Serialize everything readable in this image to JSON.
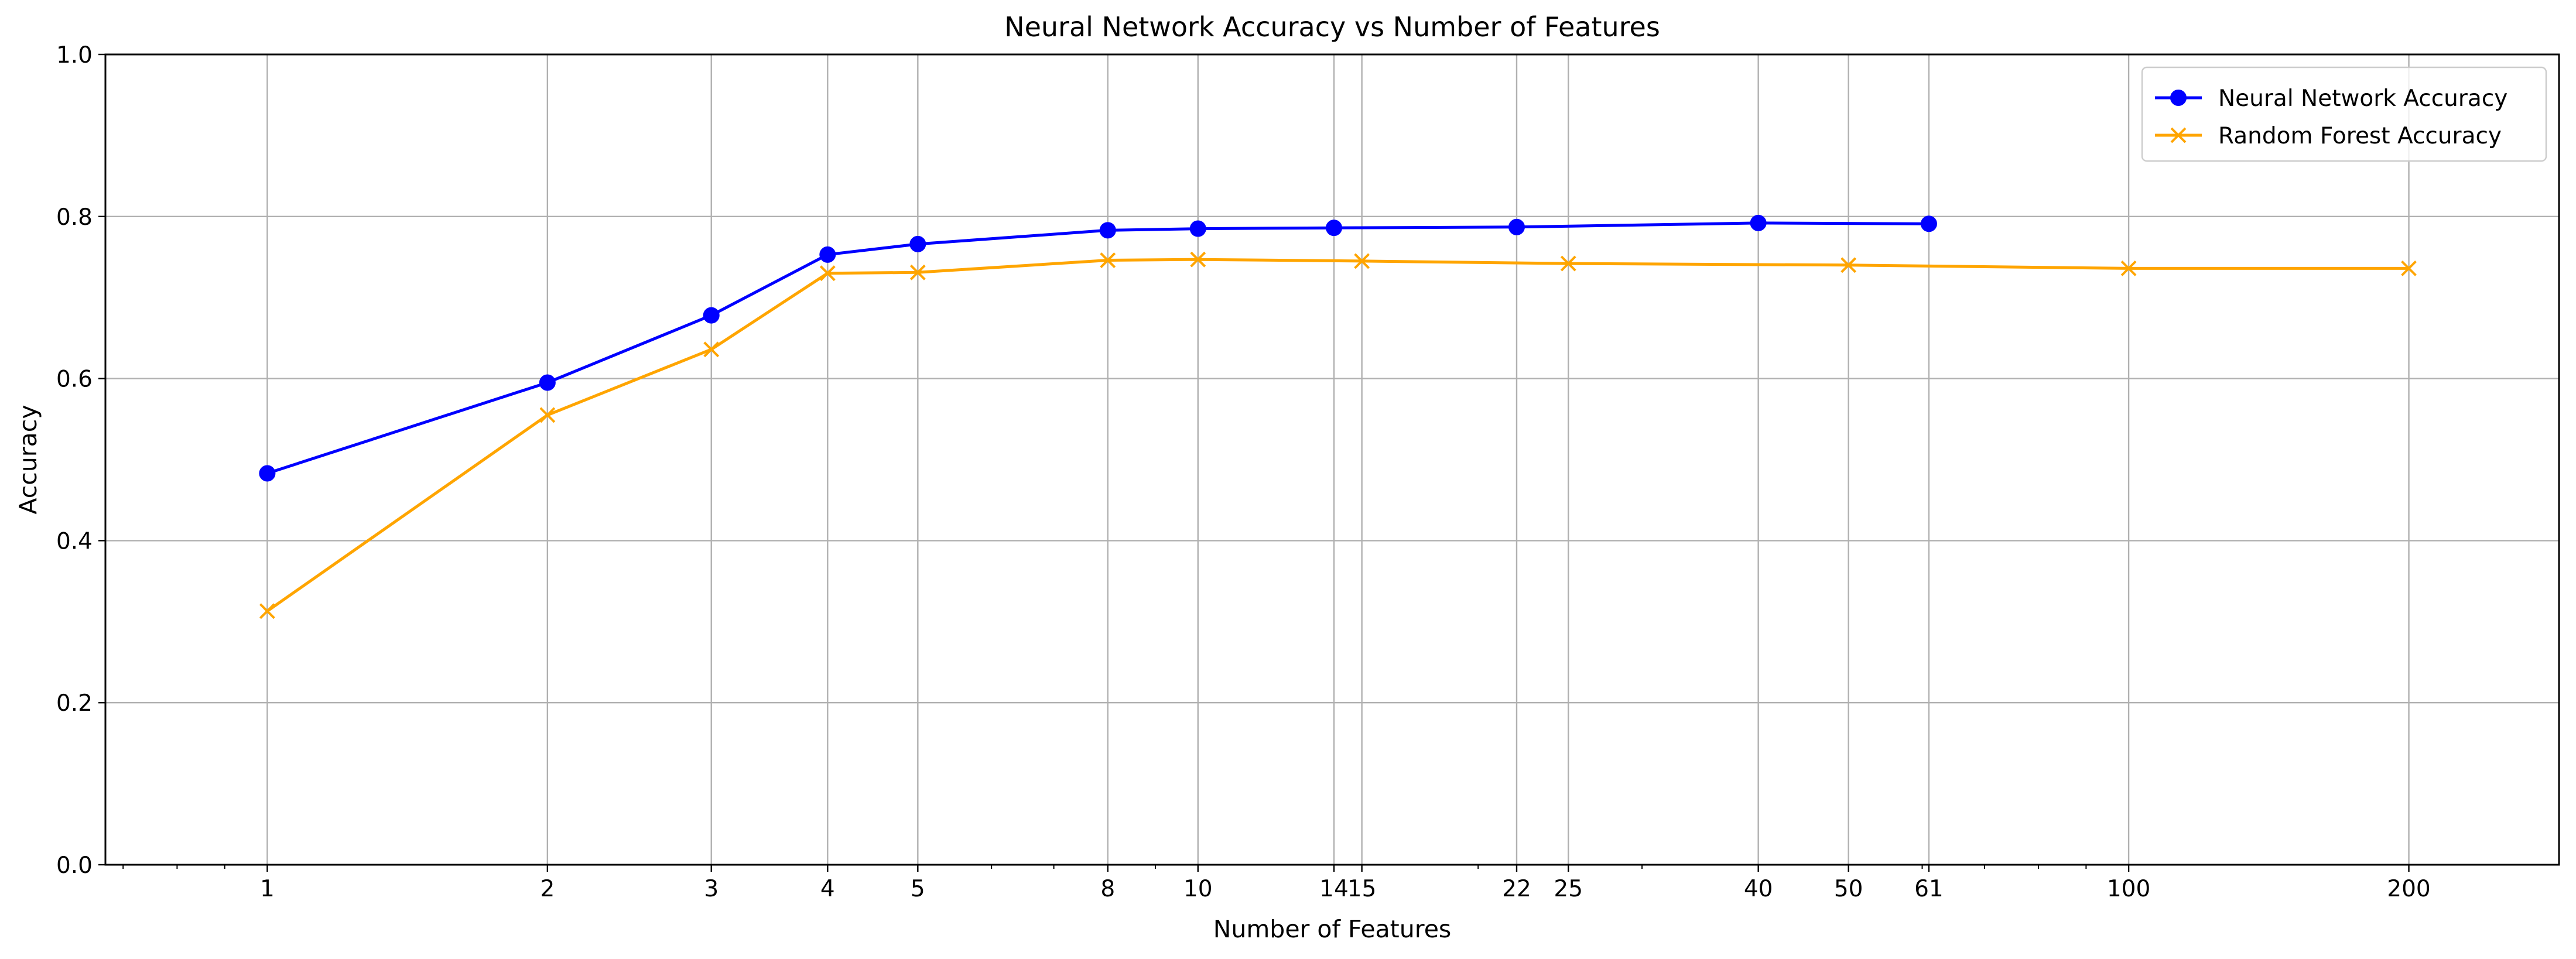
{
  "chart_data": {
    "type": "line",
    "title": "Neural Network Accuracy vs Number of Features",
    "xlabel": "Number of Features",
    "ylabel": "Accuracy",
    "xscale": "log",
    "xlim": [
      0.67,
      290
    ],
    "ylim": [
      0,
      1.0
    ],
    "grid": true,
    "legend_position": "top-right",
    "x_ticks": [
      {
        "value": 1,
        "label": "1"
      },
      {
        "value": 2,
        "label": "2"
      },
      {
        "value": 3,
        "label": "3"
      },
      {
        "value": 4,
        "label": "4"
      },
      {
        "value": 5,
        "label": "5"
      },
      {
        "value": 8,
        "label": "8"
      },
      {
        "value": 10,
        "label": "10"
      },
      {
        "value": 14,
        "label": "14"
      },
      {
        "value": 15,
        "label": "15"
      },
      {
        "value": 22,
        "label": "22"
      },
      {
        "value": 25,
        "label": "25"
      },
      {
        "value": 40,
        "label": "40"
      },
      {
        "value": 50,
        "label": "50"
      },
      {
        "value": 61,
        "label": "61"
      },
      {
        "value": 100,
        "label": "100"
      },
      {
        "value": 200,
        "label": "200"
      }
    ],
    "y_ticks": [
      {
        "value": 0.0,
        "label": "0.0"
      },
      {
        "value": 0.2,
        "label": "0.2"
      },
      {
        "value": 0.4,
        "label": "0.4"
      },
      {
        "value": 0.6,
        "label": "0.6"
      },
      {
        "value": 0.8,
        "label": "0.8"
      },
      {
        "value": 1.0,
        "label": "1.0"
      }
    ],
    "series": [
      {
        "name": "Neural Network Accuracy",
        "color": "#0000ff",
        "marker": "circle",
        "x": [
          1,
          2,
          3,
          4,
          5,
          8,
          10,
          14,
          22,
          40,
          61
        ],
        "y": [
          0.483,
          0.595,
          0.678,
          0.753,
          0.766,
          0.783,
          0.785,
          0.786,
          0.787,
          0.792,
          0.791
        ]
      },
      {
        "name": "Random Forest Accuracy",
        "color": "#ffa500",
        "marker": "x",
        "x": [
          1,
          2,
          3,
          4,
          5,
          8,
          10,
          15,
          25,
          50,
          100,
          200
        ],
        "y": [
          0.313,
          0.555,
          0.636,
          0.73,
          0.731,
          0.746,
          0.747,
          0.745,
          0.742,
          0.74,
          0.736,
          0.736
        ]
      }
    ]
  }
}
